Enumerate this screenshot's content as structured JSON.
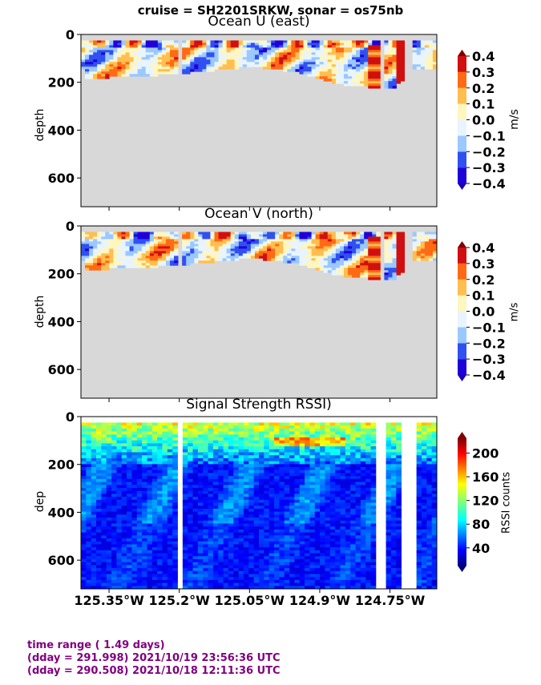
{
  "suptitle": "cruise = SH2201SRKW,  sonar = os75nb",
  "x_ticks": [
    "125.35°W",
    "125.2°W",
    "125.05°W",
    "124.9°W",
    "124.75°W"
  ],
  "colors": {
    "land": "#d8d8d8",
    "footer": "#800080"
  },
  "footer": {
    "line1": "time range ( 1.49 days)",
    "line2": "(dday = 291.998) 2021/10/19 23:56:36 UTC",
    "line3": "(dday = 290.508) 2021/10/18 12:11:36 UTC"
  },
  "chart_data": [
    {
      "type": "heatmap",
      "title": "Ocean U (east)",
      "xlabel": "",
      "ylabel": "depth",
      "y_ticks": [
        "0",
        "200",
        "400",
        "600"
      ],
      "ylim": [
        720,
        0
      ],
      "colorbar": {
        "label": "m/s",
        "ticks": [
          "0.4",
          "0.3",
          "0.2",
          "0.1",
          "0.0",
          "−0.1",
          "−0.2",
          "−0.3",
          "−0.4"
        ],
        "range": [
          -0.4,
          0.4
        ],
        "colormap": "jet",
        "discrete": true
      },
      "bottom_depth_by_lon": [
        [
          -125.4,
          180
        ],
        [
          -125.35,
          175
        ],
        [
          -125.2,
          160
        ],
        [
          -125.05,
          130
        ],
        [
          -124.95,
          150
        ],
        [
          -124.87,
          200
        ],
        [
          -124.8,
          215
        ],
        [
          -124.74,
          220
        ],
        [
          -124.7,
          140
        ],
        [
          -124.65,
          140
        ]
      ]
    },
    {
      "type": "heatmap",
      "title": "Ocean V (north)",
      "xlabel": "",
      "ylabel": "depth",
      "y_ticks": [
        "0",
        "200",
        "400",
        "600"
      ],
      "ylim": [
        720,
        0
      ],
      "colorbar": {
        "label": "m/s",
        "ticks": [
          "0.4",
          "0.3",
          "0.2",
          "0.1",
          "0.0",
          "−0.1",
          "−0.2",
          "−0.3",
          "−0.4"
        ],
        "range": [
          -0.4,
          0.4
        ],
        "colormap": "jet",
        "discrete": true
      },
      "bottom_depth_by_lon": [
        [
          -125.4,
          180
        ],
        [
          -125.35,
          175
        ],
        [
          -125.2,
          160
        ],
        [
          -125.05,
          130
        ],
        [
          -124.95,
          150
        ],
        [
          -124.87,
          200
        ],
        [
          -124.8,
          215
        ],
        [
          -124.74,
          220
        ],
        [
          -124.7,
          140
        ],
        [
          -124.65,
          140
        ]
      ]
    },
    {
      "type": "heatmap",
      "title": "Signal Strength RSSI)",
      "xlabel": "",
      "ylabel": "dep",
      "y_ticks": [
        "0",
        "200",
        "400",
        "600"
      ],
      "ylim": [
        720,
        0
      ],
      "colorbar": {
        "label": "RSSI counts",
        "ticks": [
          "200",
          "160",
          "120",
          "80",
          "40"
        ],
        "range": [
          10,
          225
        ],
        "colormap": "jet",
        "discrete": false
      }
    }
  ]
}
